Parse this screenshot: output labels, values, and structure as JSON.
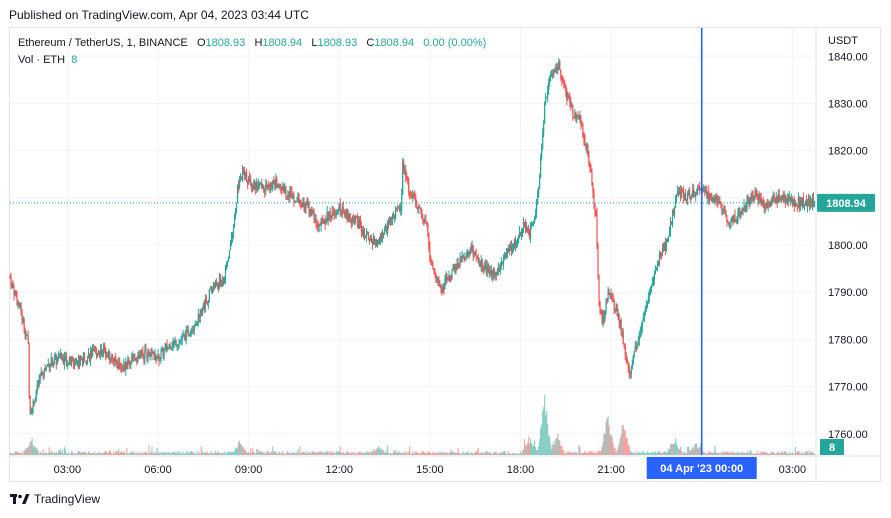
{
  "header": {
    "published": "Published on TradingView.com, Apr 04, 2023 03:44 UTC"
  },
  "legend": {
    "symbol": "Ethereum / TetherUS, 1, BINANCE",
    "open_label": "O",
    "open": "1808.93",
    "high_label": "H",
    "high": "1808.94",
    "low_label": "L",
    "low": "1808.93",
    "close_label": "C",
    "close": "1808.94",
    "change": "0.00 (0.00%)",
    "volume_label": "Vol · ETH",
    "volume": "8"
  },
  "footer": {
    "brand": "TradingView"
  },
  "colors": {
    "up": "#26a69a",
    "down": "#ef5350",
    "crosshair": "#2962ff",
    "grid": "#f0f3fa",
    "text": "#131722"
  },
  "chart_data": {
    "type": "candlestick",
    "currency_label": "USDT",
    "y_ticks": [
      1760,
      1770,
      1780,
      1790,
      1800,
      1810,
      1820,
      1830,
      1840
    ],
    "y_tick_labels": [
      "1760.00",
      "1770.00",
      "1780.00",
      "1790.00",
      "1800.00",
      "1810.00",
      "1820.00",
      "1830.00",
      "1840.00"
    ],
    "ylim": [
      1755.5,
      1846
    ],
    "x_ticks": [
      "03:00",
      "06:00",
      "09:00",
      "12:00",
      "15:00",
      "18:00",
      "21:00",
      "00:00",
      "03:00"
    ],
    "x_tick_hours": [
      3,
      6,
      9,
      12,
      15,
      18,
      21,
      24,
      27
    ],
    "xlim_hours": [
      1.1,
      27.75
    ],
    "crosshair_hour": 24.0,
    "crosshair_label": "04 Apr '23   00:00",
    "last_price": 1808.94,
    "last_price_label": "1808.94",
    "last_volume_label": "8",
    "price_path": [
      [
        1.1,
        1793
      ],
      [
        1.45,
        1786
      ],
      [
        1.7,
        1779
      ],
      [
        1.75,
        1764
      ],
      [
        1.85,
        1766
      ],
      [
        2.1,
        1772
      ],
      [
        2.4,
        1775
      ],
      [
        2.8,
        1776
      ],
      [
        3.2,
        1775
      ],
      [
        3.5,
        1776
      ],
      [
        3.9,
        1777
      ],
      [
        4.2,
        1778
      ],
      [
        4.6,
        1775
      ],
      [
        4.9,
        1774
      ],
      [
        5.2,
        1776
      ],
      [
        5.6,
        1777
      ],
      [
        6.0,
        1776
      ],
      [
        6.4,
        1779
      ],
      [
        6.8,
        1780
      ],
      [
        7.2,
        1783
      ],
      [
        7.5,
        1787
      ],
      [
        7.8,
        1791
      ],
      [
        8.2,
        1793
      ],
      [
        8.4,
        1800
      ],
      [
        8.55,
        1806
      ],
      [
        8.65,
        1813
      ],
      [
        8.8,
        1815
      ],
      [
        9.1,
        1813
      ],
      [
        9.5,
        1812
      ],
      [
        9.9,
        1813
      ],
      [
        10.3,
        1811
      ],
      [
        10.6,
        1810
      ],
      [
        11.0,
        1808
      ],
      [
        11.3,
        1804
      ],
      [
        11.6,
        1806
      ],
      [
        12.0,
        1808
      ],
      [
        12.3,
        1806
      ],
      [
        12.6,
        1805
      ],
      [
        12.9,
        1802
      ],
      [
        13.2,
        1800
      ],
      [
        13.5,
        1803
      ],
      [
        13.8,
        1806
      ],
      [
        14.05,
        1808
      ],
      [
        14.1,
        1818
      ],
      [
        14.3,
        1812
      ],
      [
        14.6,
        1808
      ],
      [
        14.9,
        1805
      ],
      [
        15.0,
        1797
      ],
      [
        15.2,
        1793
      ],
      [
        15.4,
        1791
      ],
      [
        15.7,
        1794
      ],
      [
        16.0,
        1797
      ],
      [
        16.4,
        1799
      ],
      [
        16.7,
        1796
      ],
      [
        17.0,
        1794
      ],
      [
        17.3,
        1795
      ],
      [
        17.6,
        1799
      ],
      [
        17.9,
        1801
      ],
      [
        18.1,
        1804
      ],
      [
        18.3,
        1802
      ],
      [
        18.5,
        1806
      ],
      [
        18.65,
        1816
      ],
      [
        18.8,
        1830
      ],
      [
        19.0,
        1836
      ],
      [
        19.3,
        1838
      ],
      [
        19.5,
        1832
      ],
      [
        19.8,
        1827
      ],
      [
        20.0,
        1826
      ],
      [
        20.2,
        1820
      ],
      [
        20.35,
        1814
      ],
      [
        20.5,
        1806
      ],
      [
        20.6,
        1789
      ],
      [
        20.7,
        1783
      ],
      [
        20.9,
        1790
      ],
      [
        21.2,
        1786
      ],
      [
        21.4,
        1780
      ],
      [
        21.6,
        1772
      ],
      [
        21.8,
        1778
      ],
      [
        22.0,
        1783
      ],
      [
        22.3,
        1790
      ],
      [
        22.5,
        1796
      ],
      [
        22.8,
        1800
      ],
      [
        23.0,
        1805
      ],
      [
        23.2,
        1812
      ],
      [
        23.4,
        1810
      ],
      [
        23.7,
        1811
      ],
      [
        24.0,
        1812
      ],
      [
        24.3,
        1810
      ],
      [
        24.6,
        1809
      ],
      [
        24.9,
        1805
      ],
      [
        25.2,
        1806
      ],
      [
        25.5,
        1809
      ],
      [
        25.8,
        1811
      ],
      [
        26.1,
        1808
      ],
      [
        26.4,
        1810
      ],
      [
        26.7,
        1810
      ],
      [
        27.0,
        1809
      ],
      [
        27.3,
        1809
      ],
      [
        27.5,
        1809
      ],
      [
        27.75,
        1808.94
      ]
    ],
    "volume_spikes": [
      [
        1.8,
        14
      ],
      [
        8.7,
        12
      ],
      [
        13.3,
        6
      ],
      [
        18.3,
        20
      ],
      [
        18.8,
        58
      ],
      [
        19.2,
        22
      ],
      [
        20.9,
        44
      ],
      [
        21.4,
        32
      ],
      [
        23.1,
        16
      ],
      [
        23.8,
        12
      ]
    ]
  }
}
